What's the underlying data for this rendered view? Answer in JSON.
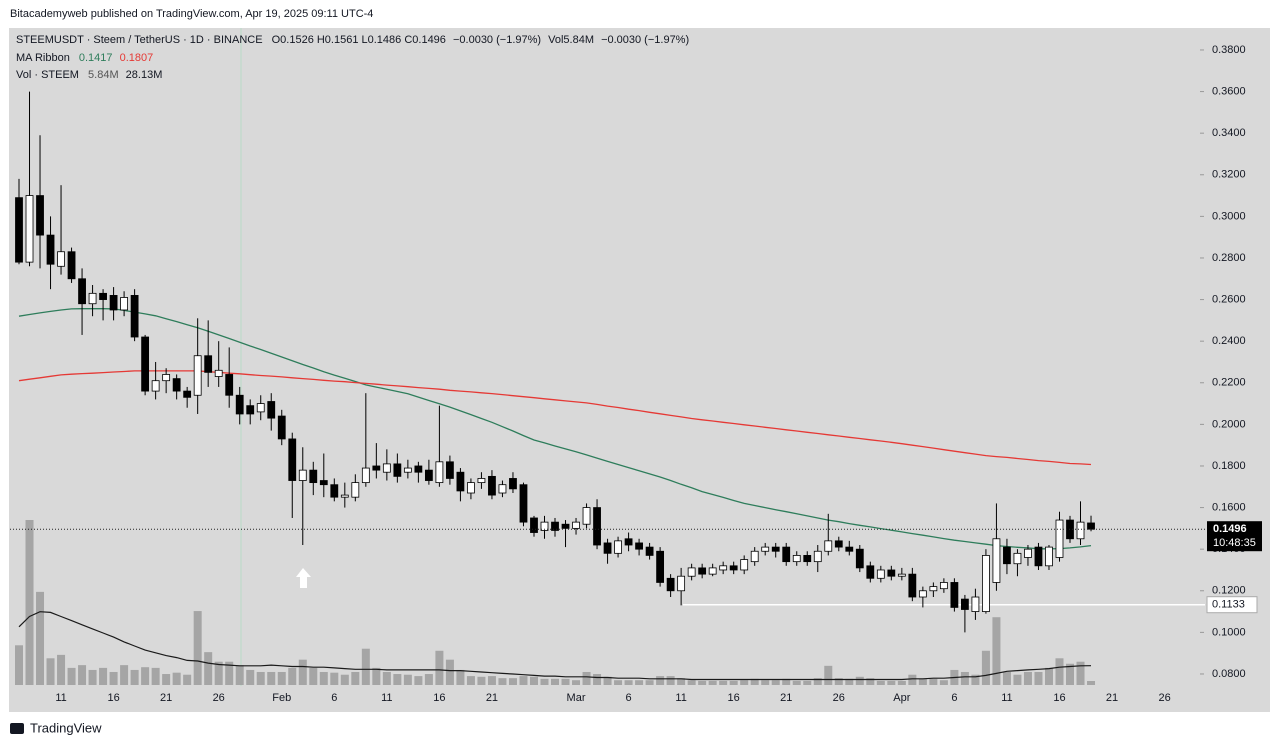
{
  "published": "Bitacademyweb published on TradingView.com, Apr 19, 2025 09:11 UTC-4",
  "brand": "TradingView",
  "chart_data": {
    "type": "candlestick",
    "legend": {
      "symbol": "STEEMUSDT · Steem / TetherUS · 1D · BINANCE",
      "ohlc": "O0.1526 H0.1561 L0.1486 C0.1496",
      "change": "−0.0030 (−1.97%)",
      "volume": "Vol5.84M",
      "volume_change": "−0.0030 (−1.97%)"
    },
    "categories": [
      null,
      null,
      null,
      null,
      "11",
      null,
      null,
      null,
      null,
      "16",
      null,
      null,
      null,
      null,
      "21",
      null,
      null,
      null,
      null,
      "26",
      null,
      null,
      null,
      null,
      null,
      "Feb",
      null,
      null,
      null,
      null,
      "6",
      null,
      null,
      null,
      null,
      "11",
      null,
      null,
      null,
      null,
      "16",
      null,
      null,
      null,
      null,
      "21",
      null,
      null,
      null,
      null,
      null,
      null,
      null,
      "Mar",
      null,
      null,
      null,
      null,
      "6",
      null,
      null,
      null,
      null,
      "11",
      null,
      null,
      null,
      null,
      "16",
      null,
      null,
      null,
      null,
      "21",
      null,
      null,
      null,
      null,
      "26",
      null,
      null,
      null,
      null,
      null,
      "Apr",
      null,
      null,
      null,
      null,
      "6",
      null,
      null,
      null,
      null,
      "11",
      null,
      null,
      null,
      null,
      "16",
      null,
      null,
      null,
      null,
      "21",
      null,
      null,
      null,
      null,
      "26",
      null,
      null,
      null
    ],
    "open": [
      0.309,
      0.278,
      0.31,
      0.291,
      0.276,
      0.283,
      0.27,
      0.258,
      0.263,
      0.262,
      0.255,
      0.262,
      0.242,
      0.216,
      0.221,
      0.222,
      0.216,
      0.214,
      0.233,
      0.223,
      0.224,
      0.214,
      0.209,
      0.206,
      0.211,
      0.204,
      0.193,
      0.173,
      0.178,
      0.173,
      0.171,
      0.165,
      0.165,
      0.172,
      0.18,
      0.177,
      0.181,
      0.177,
      0.18,
      0.178,
      0.172,
      0.182,
      0.177,
      0.167,
      0.172,
      0.175,
      0.167,
      0.174,
      0.171,
      0.155,
      0.149,
      0.153,
      0.152,
      0.15,
      0.152,
      0.16,
      0.143,
      0.138,
      0.145,
      0.143,
      0.141,
      0.139,
      0.126,
      0.12,
      0.127,
      0.131,
      0.128,
      0.13,
      0.132,
      0.13,
      0.134,
      0.139,
      0.141,
      0.141,
      0.134,
      0.137,
      0.134,
      0.139,
      0.144,
      0.141,
      0.14,
      0.132,
      0.126,
      0.13,
      0.127,
      0.128,
      0.117,
      0.12,
      0.121,
      0.124,
      0.116,
      0.11,
      0.11,
      0.124,
      0.141,
      0.133,
      0.136,
      0.141,
      0.132,
      0.136,
      0.154,
      0.145,
      0.1526,
      null,
      null,
      null,
      null,
      null,
      null,
      null,
      null,
      null,
      null
    ],
    "high": [
      0.318,
      0.36,
      0.339,
      0.3,
      0.315,
      0.285,
      0.275,
      0.267,
      0.265,
      0.266,
      0.264,
      0.265,
      0.243,
      0.23,
      0.227,
      0.224,
      0.218,
      0.251,
      0.25,
      0.24,
      0.237,
      0.218,
      0.212,
      0.214,
      0.215,
      0.207,
      0.196,
      0.189,
      0.182,
      0.186,
      0.174,
      0.172,
      0.176,
      0.215,
      0.191,
      0.188,
      0.186,
      0.183,
      0.182,
      0.183,
      0.209,
      0.185,
      0.179,
      0.174,
      0.177,
      0.178,
      0.173,
      0.177,
      0.172,
      0.156,
      0.156,
      0.155,
      0.154,
      0.155,
      0.162,
      0.164,
      0.145,
      0.146,
      0.148,
      0.145,
      0.143,
      0.141,
      0.128,
      0.131,
      0.133,
      0.133,
      0.133,
      0.134,
      0.134,
      0.137,
      0.141,
      0.143,
      0.143,
      0.143,
      0.139,
      0.139,
      0.142,
      0.157,
      0.146,
      0.144,
      0.142,
      0.134,
      0.132,
      0.132,
      0.131,
      0.131,
      0.122,
      0.124,
      0.126,
      0.126,
      0.118,
      0.121,
      0.14,
      0.162,
      0.145,
      0.14,
      0.142,
      0.143,
      0.142,
      0.158,
      0.156,
      0.163,
      0.1561,
      null,
      null,
      null,
      null,
      null,
      null,
      null,
      null,
      null,
      null
    ],
    "low": [
      0.277,
      0.276,
      0.275,
      0.265,
      0.272,
      0.268,
      0.243,
      0.252,
      0.25,
      0.25,
      0.252,
      0.24,
      0.214,
      0.212,
      0.215,
      0.212,
      0.208,
      0.205,
      0.218,
      0.218,
      0.208,
      0.2,
      0.2,
      0.202,
      0.197,
      0.19,
      0.155,
      0.142,
      0.166,
      0.165,
      0.163,
      0.16,
      0.163,
      0.17,
      0.174,
      0.173,
      0.172,
      0.174,
      0.172,
      0.171,
      0.17,
      0.171,
      0.163,
      0.164,
      0.169,
      0.164,
      0.165,
      0.167,
      0.151,
      0.146,
      0.145,
      0.146,
      0.141,
      0.147,
      0.15,
      0.14,
      0.133,
      0.136,
      0.139,
      0.137,
      0.135,
      0.122,
      0.117,
      0.113,
      0.125,
      0.126,
      0.127,
      0.128,
      0.128,
      0.128,
      0.132,
      0.137,
      0.136,
      0.132,
      0.132,
      0.132,
      0.129,
      0.137,
      0.139,
      0.137,
      0.129,
      0.124,
      0.124,
      0.125,
      0.125,
      0.115,
      0.112,
      0.117,
      0.119,
      0.11,
      0.1,
      0.106,
      0.109,
      0.12,
      0.128,
      0.127,
      0.132,
      0.13,
      0.13,
      0.134,
      0.143,
      0.142,
      0.1486,
      null,
      null,
      null,
      null,
      null,
      null,
      null,
      null,
      null,
      null
    ],
    "close": [
      0.278,
      0.31,
      0.291,
      0.277,
      0.283,
      0.27,
      0.258,
      0.263,
      0.26,
      0.255,
      0.261,
      0.242,
      0.216,
      0.221,
      0.224,
      0.216,
      0.213,
      0.233,
      0.225,
      0.226,
      0.214,
      0.205,
      0.205,
      0.21,
      0.203,
      0.193,
      0.173,
      0.178,
      0.172,
      0.171,
      0.165,
      0.166,
      0.172,
      0.179,
      0.178,
      0.181,
      0.175,
      0.179,
      0.177,
      0.173,
      0.182,
      0.174,
      0.168,
      0.172,
      0.174,
      0.166,
      0.171,
      0.169,
      0.153,
      0.148,
      0.153,
      0.149,
      0.15,
      0.153,
      0.16,
      0.142,
      0.138,
      0.144,
      0.142,
      0.14,
      0.137,
      0.124,
      0.12,
      0.127,
      0.131,
      0.128,
      0.131,
      0.132,
      0.13,
      0.135,
      0.139,
      0.141,
      0.139,
      0.134,
      0.137,
      0.134,
      0.139,
      0.144,
      0.141,
      0.139,
      0.131,
      0.126,
      0.13,
      0.127,
      0.128,
      0.117,
      0.12,
      0.122,
      0.124,
      0.112,
      0.111,
      0.117,
      0.137,
      0.145,
      0.133,
      0.138,
      0.14,
      0.132,
      0.141,
      0.154,
      0.145,
      0.153,
      0.1496,
      null,
      null,
      null,
      null,
      null,
      null,
      null,
      null,
      null,
      null
    ],
    "volume": {
      "name": "Vol · STEEM",
      "color": "#9e9e9e",
      "value_label": "5.84M",
      "values": [
        58,
        241,
        136,
        39,
        44,
        25,
        29,
        22,
        25,
        19,
        29,
        22,
        26,
        25,
        16,
        18,
        15,
        108,
        48,
        34,
        34,
        29,
        22,
        19,
        19,
        19,
        25,
        37,
        25,
        19,
        18,
        15,
        19,
        53,
        25,
        19,
        16,
        15,
        13,
        16,
        50,
        37,
        22,
        13,
        12,
        13,
        10,
        10,
        13,
        12,
        9,
        9,
        9,
        7,
        19,
        16,
        12,
        7,
        7,
        7,
        7,
        13,
        13,
        10,
        7,
        6,
        6,
        6,
        6,
        7,
        9,
        7,
        7,
        9,
        6,
        6,
        10,
        28,
        10,
        9,
        12,
        10,
        6,
        6,
        6,
        15,
        9,
        9,
        7,
        22,
        19,
        15,
        50,
        99,
        19,
        15,
        19,
        19,
        25,
        39,
        31,
        34,
        5.84,
        null,
        null,
        null,
        null,
        null,
        null,
        null,
        null,
        null,
        null
      ],
      "ma": {
        "color": "#1a1a1a",
        "value_label": "28.13M",
        "values": [
          85,
          100,
          107,
          106,
          100,
          94,
          88,
          82,
          76,
          70,
          63,
          57,
          51,
          47,
          43,
          40,
          36,
          35,
          32,
          30,
          29,
          28,
          28,
          28,
          29,
          28,
          27,
          27,
          26,
          26,
          25,
          24,
          23,
          23,
          23,
          22,
          22,
          22,
          22,
          22,
          22,
          21,
          21,
          20,
          19,
          18,
          17,
          16,
          15,
          14,
          13,
          13,
          12,
          12,
          12,
          11,
          11,
          10,
          10,
          10,
          9,
          9,
          9,
          9,
          8,
          8,
          8,
          8,
          8,
          8,
          8,
          8,
          8,
          8,
          8,
          8,
          8,
          8,
          8,
          8,
          8,
          8,
          8,
          8,
          8,
          9,
          9,
          10,
          10,
          11,
          12,
          12,
          14,
          17,
          20,
          21,
          22,
          23,
          24,
          26,
          27,
          28,
          28.13,
          null,
          null,
          null,
          null,
          null,
          null,
          null,
          null,
          null,
          null
        ]
      }
    },
    "ma_ribbon": {
      "name": "MA Ribbon",
      "series": [
        {
          "color": "#2e7d5b",
          "value_label": "0.1417",
          "values": [
            0.252,
            0.2528,
            0.2536,
            0.2543,
            0.255,
            0.2555,
            0.2556,
            0.2556,
            0.2556,
            0.2555,
            0.2548,
            0.254,
            0.2531,
            0.2522,
            0.2508,
            0.2494,
            0.2479,
            0.2465,
            0.2448,
            0.243,
            0.2413,
            0.2395,
            0.2377,
            0.236,
            0.2342,
            0.2324,
            0.2306,
            0.2288,
            0.2271,
            0.2253,
            0.2237,
            0.2222,
            0.2206,
            0.219,
            0.2179,
            0.2169,
            0.2158,
            0.2147,
            0.2131,
            0.2115,
            0.2099,
            0.2083,
            0.2065,
            0.2047,
            0.2028,
            0.201,
            0.1989,
            0.1968,
            0.1946,
            0.1925,
            0.1911,
            0.1896,
            0.1882,
            0.1868,
            0.1853,
            0.1838,
            0.1822,
            0.1807,
            0.1792,
            0.1777,
            0.1762,
            0.1747,
            0.173,
            0.1712,
            0.1695,
            0.1677,
            0.1663,
            0.1649,
            0.1634,
            0.162,
            0.161,
            0.16,
            0.159,
            0.158,
            0.157,
            0.156,
            0.155,
            0.154,
            0.1532,
            0.1523,
            0.1515,
            0.1507,
            0.1499,
            0.1491,
            0.1483,
            0.1475,
            0.1467,
            0.1459,
            0.1451,
            0.1443,
            0.1437,
            0.143,
            0.1424,
            0.1417,
            0.1413,
            0.1409,
            0.1406,
            0.1402,
            0.1402,
            0.1403,
            0.1406,
            0.1411,
            0.1417,
            null,
            null,
            null,
            null,
            null,
            null,
            null,
            null,
            null,
            null
          ]
        },
        {
          "color": "#e53935",
          "value_label": "0.1807",
          "values": [
            0.221,
            0.2217,
            0.2224,
            0.2231,
            0.2238,
            0.2241,
            0.2244,
            0.2246,
            0.2249,
            0.2252,
            0.2254,
            0.2257,
            0.2257,
            0.2257,
            0.2257,
            0.2257,
            0.2257,
            0.2257,
            0.2253,
            0.225,
            0.2246,
            0.2243,
            0.2239,
            0.2235,
            0.2232,
            0.2228,
            0.2224,
            0.222,
            0.2216,
            0.2212,
            0.2208,
            0.2205,
            0.2201,
            0.2197,
            0.2193,
            0.2189,
            0.2185,
            0.2181,
            0.2177,
            0.2173,
            0.2169,
            0.2164,
            0.216,
            0.2156,
            0.2152,
            0.2148,
            0.2143,
            0.2138,
            0.2133,
            0.2128,
            0.2123,
            0.2118,
            0.2113,
            0.2108,
            0.2103,
            0.2096,
            0.2088,
            0.2081,
            0.2073,
            0.2066,
            0.2058,
            0.2051,
            0.2043,
            0.2036,
            0.2028,
            0.2022,
            0.2016,
            0.201,
            0.2004,
            0.1998,
            0.1992,
            0.1986,
            0.198,
            0.1974,
            0.1968,
            0.1962,
            0.1956,
            0.195,
            0.1944,
            0.1938,
            0.1932,
            0.1926,
            0.192,
            0.1914,
            0.1907,
            0.19,
            0.1893,
            0.1886,
            0.1878,
            0.1871,
            0.1864,
            0.1857,
            0.185,
            0.1845,
            0.1841,
            0.1836,
            0.1831,
            0.1826,
            0.1822,
            0.1817,
            0.1812,
            0.181,
            0.1807,
            null,
            null,
            null,
            null,
            null,
            null,
            null,
            null,
            null,
            null
          ]
        }
      ]
    },
    "up_color": "#ffffff",
    "down_color": "#000000",
    "ylim": [
      0.0747,
      0.3896
    ],
    "yticks": [
      {
        "value": 0.08,
        "label": "0.0800"
      },
      {
        "value": 0.1,
        "label": "0.1000"
      },
      {
        "value": 0.12,
        "label": "0.1200"
      },
      {
        "value": 0.14,
        "label": "0.1400"
      },
      {
        "value": 0.16,
        "label": "0.1600"
      },
      {
        "value": 0.18,
        "label": "0.1800"
      },
      {
        "value": 0.2,
        "label": "0.2000"
      },
      {
        "value": 0.22,
        "label": "0.2200"
      },
      {
        "value": 0.24,
        "label": "0.2400"
      },
      {
        "value": 0.26,
        "label": "0.2600"
      },
      {
        "value": 0.28,
        "label": "0.2800"
      },
      {
        "value": 0.3,
        "label": "0.3000"
      },
      {
        "value": 0.32,
        "label": "0.3200"
      },
      {
        "value": 0.34,
        "label": "0.3400"
      },
      {
        "value": 0.36,
        "label": "0.3600"
      },
      {
        "value": 0.38,
        "label": "0.3800"
      }
    ],
    "grid": false,
    "last_price": {
      "label": "0.1496",
      "countdown": "10:48:35"
    },
    "level": 0.1133
  }
}
